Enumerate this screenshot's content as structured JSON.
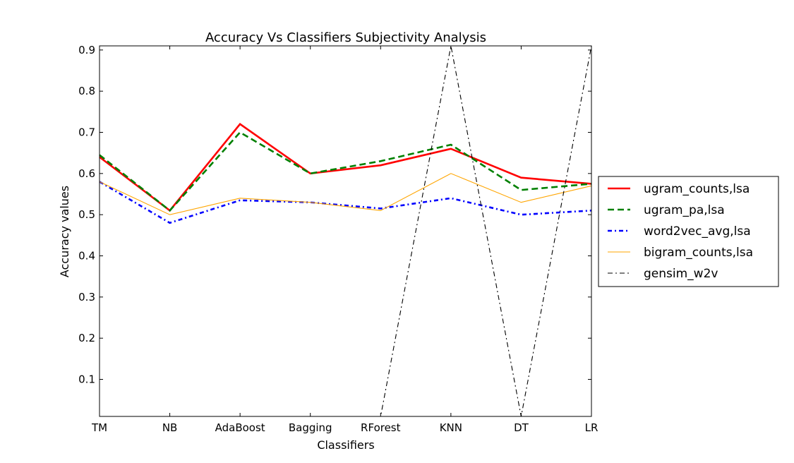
{
  "chart_data": {
    "type": "line",
    "title": "Accuracy Vs Classifiers Subjectivity Analysis",
    "xlabel": "Classifiers",
    "ylabel": "Accuracy values",
    "categories": [
      "TM",
      "NB",
      "AdaBoost",
      "Bagging",
      "RForest",
      "KNN",
      "DT",
      "LR"
    ],
    "ylim": [
      0.01,
      0.91
    ],
    "yticks": [
      "0.1",
      "0.2",
      "0.3",
      "0.4",
      "0.5",
      "0.6",
      "0.7",
      "0.8",
      "0.9"
    ],
    "grid": false,
    "legend_position": "right",
    "series": [
      {
        "name": "ugram_counts,lsa",
        "color": "#ff0000",
        "style": "solid",
        "values": [
          0.64,
          0.51,
          0.72,
          0.6,
          0.62,
          0.66,
          0.59,
          0.575
        ]
      },
      {
        "name": "ugram_pa,lsa",
        "color": "#008000",
        "style": "dashed",
        "values": [
          0.645,
          0.51,
          0.7,
          0.6,
          0.63,
          0.67,
          0.56,
          0.575
        ]
      },
      {
        "name": "word2vec_avg,lsa",
        "color": "#0000ff",
        "style": "dashdot",
        "values": [
          0.58,
          0.48,
          0.535,
          0.53,
          0.515,
          0.54,
          0.5,
          0.51
        ]
      },
      {
        "name": "bigram_counts,lsa",
        "color": "#ffa500",
        "style": "thin",
        "values": [
          0.58,
          0.5,
          0.54,
          0.53,
          0.51,
          0.6,
          0.53,
          0.57
        ]
      },
      {
        "name": "gensim_w2v",
        "color": "#000000",
        "style": "dashdot-thin",
        "values": [
          0.01,
          0.01,
          0.01,
          0.01,
          0.01,
          0.91,
          0.01,
          0.91
        ]
      }
    ]
  }
}
